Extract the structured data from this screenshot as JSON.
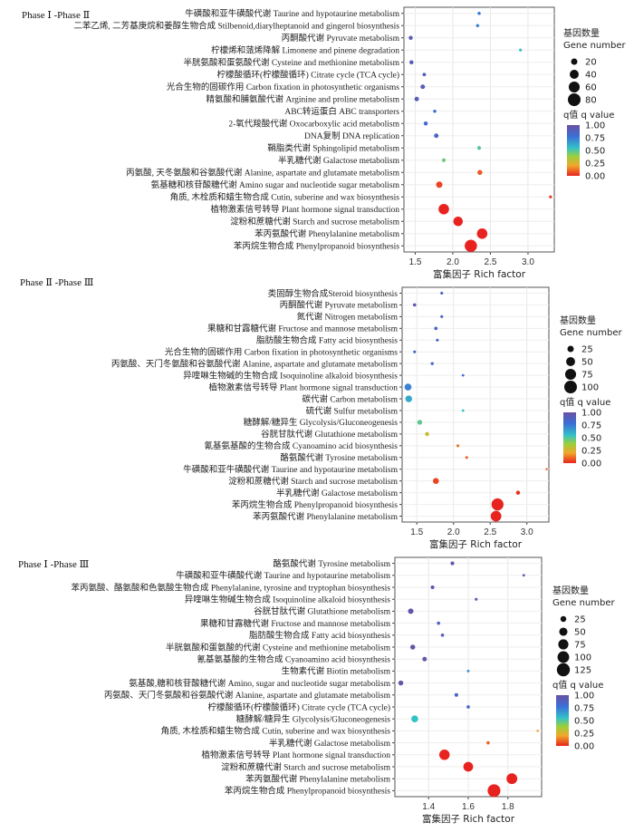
{
  "chart_data": [
    {
      "type": "scatter",
      "title": "Phase Ⅰ -Phase Ⅱ",
      "xlabel": "富集因子 Rich factor",
      "xlim": [
        1.35,
        3.35
      ],
      "xticks": [
        1.5,
        2.0,
        2.5,
        3.0
      ],
      "categories": [
        "牛磺酸和亚牛磺酸代谢 Taurine and hypotaurine metabolism",
        "二苯乙烯, 二芳基庚烷和姜醇生物合成 Stilbenoid,diarylheptanoid and gingerol biosynthesis",
        "丙酮酸代谢 Pyruvate metabolism",
        "柠檬烯和蒎烯降解 Limonene and pinene degradation",
        "半胱氨酸和蛋氨酸代谢 Cysteine and methionine metabolism",
        "柠檬酸循环(柠檬酸循环) Citrate cycle (TCA cycle)",
        "光合生物的固碳作用 Carbon fixation in photosynthetic organisms",
        "精氨酸和脯氨酸代谢 Arginine and proline metabolism",
        "ABC转运蛋白 ABC transporters",
        "2-氧代羧酸代谢 Oxocarboxylic acid metabolism",
        "DNA复制 DNA replication",
        "鞘脂类代谢 Sphingolipid metabolism",
        "半乳糖代谢 Galactose metabolism",
        "丙氨酸, 天冬氨酸和谷氨酸代谢 Alanine, aspartate and glutamate metabolism",
        "氨基糖和核苷酸糖代谢 Amino sugar and nucleotide sugar metabolism",
        "角质, 木栓质和蜡生物合成 Cutin, suberine and wax biosynthesis",
        "植物激素信号转导 Plant hormone signal transduction",
        "淀粉和蔗糖代谢 Starch and sucrose metabolism",
        "苯丙氨酸代谢 Phenylalanine metabolism",
        "苯丙烷生物合成 Phenylpropanoid biosynthesis"
      ],
      "points": [
        {
          "x": 2.35,
          "gene": 5,
          "q": 0.75
        },
        {
          "x": 2.33,
          "gene": 5,
          "q": 0.72
        },
        {
          "x": 1.44,
          "gene": 8,
          "q": 0.92
        },
        {
          "x": 2.9,
          "gene": 4,
          "q": 0.55
        },
        {
          "x": 1.45,
          "gene": 8,
          "q": 0.92
        },
        {
          "x": 1.62,
          "gene": 6,
          "q": 0.9
        },
        {
          "x": 1.6,
          "gene": 10,
          "q": 0.92
        },
        {
          "x": 1.52,
          "gene": 10,
          "q": 0.9
        },
        {
          "x": 1.76,
          "gene": 5,
          "q": 0.78
        },
        {
          "x": 1.64,
          "gene": 8,
          "q": 0.82
        },
        {
          "x": 1.78,
          "gene": 10,
          "q": 0.85
        },
        {
          "x": 2.35,
          "gene": 7,
          "q": 0.5
        },
        {
          "x": 1.88,
          "gene": 7,
          "q": 0.45
        },
        {
          "x": 2.36,
          "gene": 12,
          "q": 0.08
        },
        {
          "x": 1.82,
          "gene": 20,
          "q": 0.05
        },
        {
          "x": 3.3,
          "gene": 4,
          "q": 0.02
        },
        {
          "x": 1.88,
          "gene": 55,
          "q": 0.0
        },
        {
          "x": 2.07,
          "gene": 45,
          "q": 0.0
        },
        {
          "x": 2.39,
          "gene": 55,
          "q": 0.0
        },
        {
          "x": 2.24,
          "gene": 75,
          "q": 0.0
        }
      ],
      "legend": {
        "size_title": [
          "基因数量",
          "Gene number"
        ],
        "size_values": [
          20,
          40,
          60,
          80
        ],
        "color_title": "q值 q value",
        "color_ticks": [
          "1.00",
          "0.75",
          "0.50",
          "0.25",
          "0.00"
        ]
      }
    },
    {
      "type": "scatter",
      "title": "Phase Ⅱ -Phase Ⅲ",
      "xlabel": "富集因子 Rich factor",
      "xlim": [
        1.3,
        3.3
      ],
      "xticks": [
        1.5,
        2.0,
        2.5,
        3.0
      ],
      "categories": [
        "类固醇生物合成Steroid biosynthesis",
        "丙酮酸代谢 Pyruvate metabolism",
        "氮代谢 Nitrogen metabolism",
        "果糖和甘露糖代谢 Fructose and mannose metabolism",
        "脂肪酸生物合成 Fatty acid biosynthesis",
        "光合生物的固碳作用 Carbon fixation in photosynthetic organisms",
        "丙氨酸、天门冬氨酸和谷氨酸代谢 Alanine, aspartate and glutamate metabolism",
        "异喹啉生物碱的生物合成 Isoquinoline alkaloid biosynthesis",
        "植物激素信号转导 Plant hormone signal transduction",
        "碳代谢 Carbon metabolism",
        "硫代谢 Sulfur metabolism",
        "糖酵解/糖异生 Glycolysis/Gluconeogenesis",
        "谷胱甘肽代谢 Glutathione metabolism",
        "氰基氨基酸的生物合成 Cyanoamino acid biosynthesis",
        "酪氨酸代谢 Tyrosine metabolism",
        "牛磺酸和亚牛磺酸代谢 Taurine and hypotaurine metabolism",
        "淀粉和蔗糖代谢 Starch and sucrose metabolism",
        "半乳糖代谢 Galactose metabolism",
        "苯丙烷生物合成 Phenylpropanoid biosynthesis",
        "苯丙氨酸代谢 Phenylalanine metabolism"
      ],
      "points": [
        {
          "x": 1.84,
          "gene": 5,
          "q": 0.85
        },
        {
          "x": 1.47,
          "gene": 7,
          "q": 0.95
        },
        {
          "x": 1.84,
          "gene": 5,
          "q": 0.85
        },
        {
          "x": 1.76,
          "gene": 7,
          "q": 0.85
        },
        {
          "x": 1.78,
          "gene": 5,
          "q": 0.85
        },
        {
          "x": 1.47,
          "gene": 5,
          "q": 0.85
        },
        {
          "x": 1.71,
          "gene": 6,
          "q": 0.85
        },
        {
          "x": 2.13,
          "gene": 4,
          "q": 0.8
        },
        {
          "x": 1.38,
          "gene": 30,
          "q": 0.72
        },
        {
          "x": 1.39,
          "gene": 28,
          "q": 0.62
        },
        {
          "x": 2.13,
          "gene": 4,
          "q": 0.55
        },
        {
          "x": 1.54,
          "gene": 15,
          "q": 0.48
        },
        {
          "x": 1.64,
          "gene": 10,
          "q": 0.3
        },
        {
          "x": 2.06,
          "gene": 5,
          "q": 0.12
        },
        {
          "x": 2.18,
          "gene": 5,
          "q": 0.1
        },
        {
          "x": 3.27,
          "gene": 3,
          "q": 0.08
        },
        {
          "x": 1.76,
          "gene": 22,
          "q": 0.05
        },
        {
          "x": 2.88,
          "gene": 10,
          "q": 0.02
        },
        {
          "x": 2.6,
          "gene": 90,
          "q": 0.0
        },
        {
          "x": 2.58,
          "gene": 70,
          "q": 0.0
        }
      ],
      "legend": {
        "size_title": [
          "基因数量",
          "Gene number"
        ],
        "size_values": [
          25,
          50,
          75,
          100
        ],
        "color_title": "q值 q value",
        "color_ticks": [
          "1.00",
          "0.75",
          "0.50",
          "0.25",
          "0.00"
        ]
      }
    },
    {
      "type": "scatter",
      "title": "Phase Ⅰ -Phase Ⅲ",
      "xlabel": "富集因子 Rich factor",
      "xlim": [
        1.23,
        1.97
      ],
      "xticks": [
        1.4,
        1.6,
        1.8
      ],
      "categories": [
        "酪氨酸代谢 Tyrosine metabolism",
        "牛磺酸和亚牛磺酸代谢 Taurine and hypotaurine metabolism",
        "苯丙氨酸、酪氨酸和色氨酸生物合成 Phenylalanine, tyrosine and tryptophan biosynthesis",
        "异喹啉生物碱生物合成 Isoquinoline alkaloid biosynthesis",
        "谷胱甘肽代谢 Glutathione metabolism",
        "果糖和甘露糖代谢 Fructose and mannose metabolism",
        "脂肪酸生物合成 Fatty acid biosynthesis",
        "半胱氨酸和蛋氨酸的代谢 Cysteine and methionine metabolism",
        "氰基氨基酸的生物合成 Cyanoamino acid biosynthesis",
        "生物素代谢 Biotin metabolism",
        "氨基酸,糖和核苷酸糖代谢 Amino, sugar and nucleotide sugar metabolism",
        "丙氨酸、天门冬氨酸和谷氨酸代谢 Alanine, aspartate and glutamate metabolism",
        "柠檬酸循环(柠檬酸循环) Citrate cycle (TCA cycle)",
        "糖酵解/糖异生 Glycolysis/Gluconeogenesis",
        "角质, 木栓质和蜡生物合成 Cutin, suberine and wax biosynthesis",
        "半乳糖代谢 Galactose metabolism",
        "植物激素信号转导 Plant hormone signal transduction",
        "淀粉和蔗糖代谢 Starch and sucrose metabolism",
        "苯丙氨酸代谢 Phenylalanine metabolism",
        "苯丙烷生物合成 Phenylpropanoid biosynthesis"
      ],
      "points": [
        {
          "x": 1.52,
          "gene": 10,
          "q": 0.95
        },
        {
          "x": 1.88,
          "gene": 5,
          "q": 0.92
        },
        {
          "x": 1.42,
          "gene": 10,
          "q": 0.95
        },
        {
          "x": 1.64,
          "gene": 6,
          "q": 0.92
        },
        {
          "x": 1.31,
          "gene": 22,
          "q": 0.98
        },
        {
          "x": 1.45,
          "gene": 8,
          "q": 0.85
        },
        {
          "x": 1.47,
          "gene": 8,
          "q": 0.9
        },
        {
          "x": 1.32,
          "gene": 18,
          "q": 0.98
        },
        {
          "x": 1.38,
          "gene": 15,
          "q": 0.98
        },
        {
          "x": 1.6,
          "gene": 5,
          "q": 0.7
        },
        {
          "x": 1.26,
          "gene": 18,
          "q": 0.98
        },
        {
          "x": 1.54,
          "gene": 10,
          "q": 0.85
        },
        {
          "x": 1.6,
          "gene": 8,
          "q": 0.85
        },
        {
          "x": 1.33,
          "gene": 35,
          "q": 0.55
        },
        {
          "x": 1.95,
          "gene": 4,
          "q": 0.2
        },
        {
          "x": 1.7,
          "gene": 8,
          "q": 0.1
        },
        {
          "x": 1.48,
          "gene": 80,
          "q": 0.0
        },
        {
          "x": 1.6,
          "gene": 70,
          "q": 0.0
        },
        {
          "x": 1.82,
          "gene": 85,
          "q": 0.0
        },
        {
          "x": 1.73,
          "gene": 120,
          "q": 0.0
        }
      ],
      "legend": {
        "size_title": [
          "基因数量",
          "Gene number"
        ],
        "size_values": [
          25,
          50,
          75,
          100,
          125
        ],
        "color_title": "q值 q value",
        "color_ticks": [
          "1.00",
          "0.75",
          "0.50",
          "0.25",
          "0.00"
        ]
      }
    }
  ]
}
